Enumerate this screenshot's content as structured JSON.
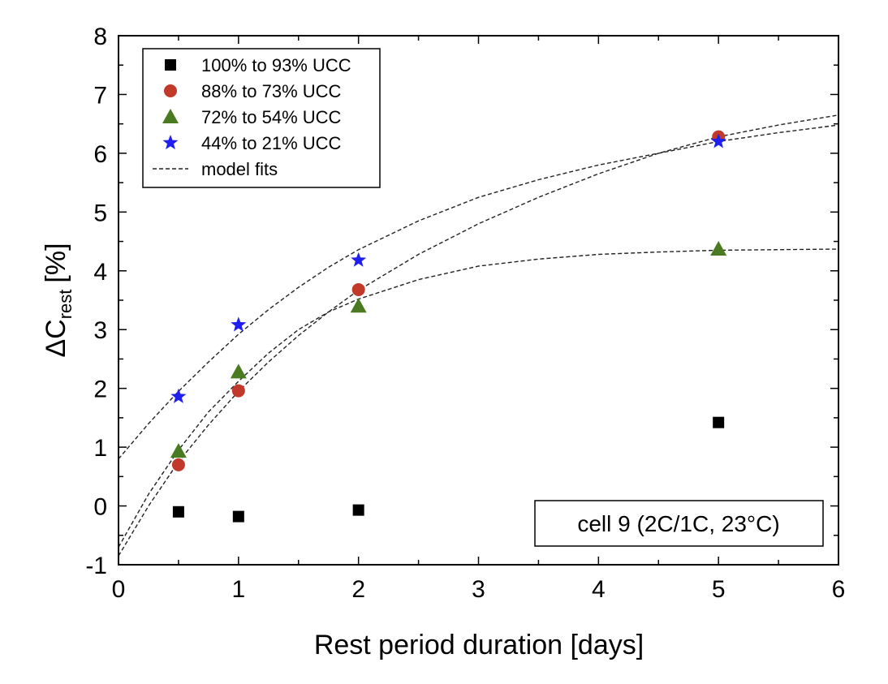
{
  "chart_data": {
    "type": "scatter",
    "xlabel": "Rest period duration [days]",
    "ylabel_main": "ΔC",
    "ylabel_sub": "rest",
    "ylabel_unit": "[%]",
    "xlim": [
      0,
      6
    ],
    "ylim": [
      -1,
      8
    ],
    "x_ticks": [
      "0",
      "1",
      "2",
      "3",
      "4",
      "5",
      "6"
    ],
    "y_ticks": [
      "-1",
      "0",
      "1",
      "2",
      "3",
      "4",
      "5",
      "6",
      "7",
      "8"
    ],
    "grid": false,
    "legend_position": "top-left",
    "annotation": "cell 9 (2C/1C, 23°C)",
    "series": [
      {
        "name": "100% to 93% UCC",
        "marker": "square",
        "color": "#000000",
        "x": [
          0.5,
          1,
          2,
          5
        ],
        "y": [
          -0.1,
          -0.18,
          -0.07,
          1.42
        ]
      },
      {
        "name": "88% to 73% UCC",
        "marker": "circle",
        "color": "#c0392b",
        "x": [
          0.5,
          1,
          2,
          5
        ],
        "y": [
          0.7,
          1.96,
          3.68,
          6.28
        ]
      },
      {
        "name": "72% to 54% UCC",
        "marker": "triangle",
        "color": "#4a7a22",
        "x": [
          0.5,
          1,
          2,
          5
        ],
        "y": [
          0.93,
          2.28,
          3.4,
          4.37
        ]
      },
      {
        "name": "44% to 21% UCC",
        "marker": "star",
        "color": "#1f1ff0",
        "x": [
          0.5,
          1,
          2,
          5
        ],
        "y": [
          1.86,
          3.08,
          4.18,
          6.2
        ]
      }
    ],
    "model_fits_label": "model fits",
    "model_fits": [
      {
        "x": [
          0,
          0.25,
          0.5,
          0.75,
          1,
          1.25,
          1.5,
          1.75,
          2,
          2.5,
          3,
          3.5,
          4,
          4.5,
          5,
          5.5,
          6
        ],
        "y": [
          0.8,
          1.4,
          1.95,
          2.45,
          2.92,
          3.34,
          3.72,
          4.06,
          4.36,
          4.85,
          5.25,
          5.55,
          5.8,
          6.0,
          6.2,
          6.35,
          6.48
        ]
      },
      {
        "x": [
          0,
          0.25,
          0.5,
          0.75,
          1,
          1.25,
          1.5,
          1.75,
          2,
          2.5,
          3,
          3.5,
          4,
          4.5,
          5,
          5.5,
          6
        ],
        "y": [
          -0.85,
          0.0,
          0.75,
          1.38,
          1.95,
          2.45,
          2.9,
          3.3,
          3.67,
          4.28,
          4.8,
          5.25,
          5.65,
          6.0,
          6.28,
          6.48,
          6.65
        ]
      },
      {
        "x": [
          0,
          0.25,
          0.5,
          0.75,
          1,
          1.25,
          1.5,
          1.75,
          2,
          2.5,
          3,
          3.5,
          4,
          4.5,
          5,
          5.5,
          6
        ],
        "y": [
          -0.7,
          0.2,
          0.95,
          1.6,
          2.12,
          2.6,
          3.0,
          3.3,
          3.52,
          3.85,
          4.08,
          4.2,
          4.28,
          4.32,
          4.35,
          4.36,
          4.37
        ]
      }
    ]
  }
}
